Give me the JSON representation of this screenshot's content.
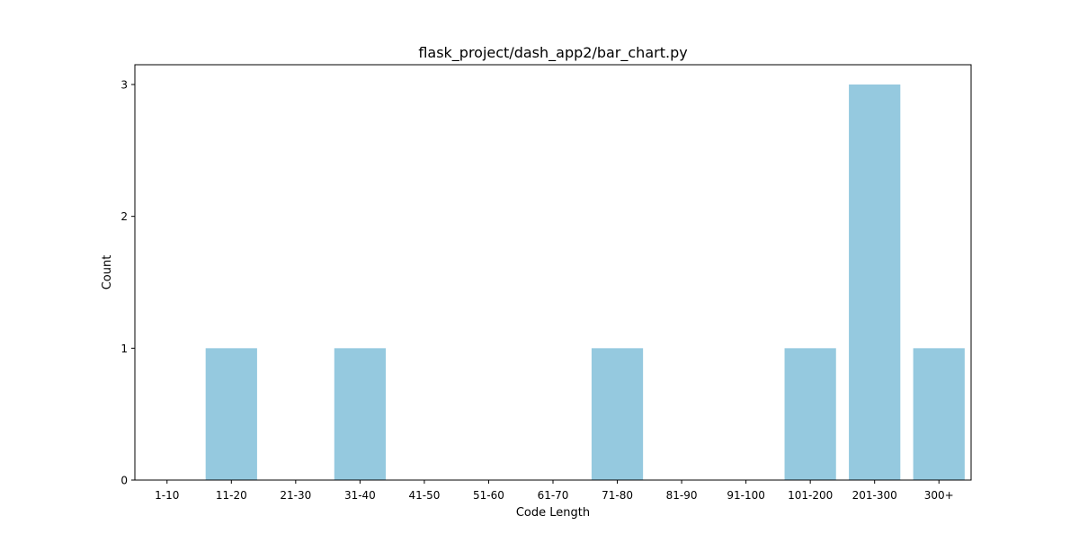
{
  "chart_data": {
    "type": "bar",
    "title": "flask_project/dash_app2/bar_chart.py",
    "xlabel": "Code Length",
    "ylabel": "Count",
    "categories": [
      "1-10",
      "11-20",
      "21-30",
      "31-40",
      "41-50",
      "51-60",
      "61-70",
      "71-80",
      "81-90",
      "91-100",
      "101-200",
      "201-300",
      "300+"
    ],
    "values": [
      0,
      1,
      0,
      1,
      0,
      0,
      0,
      1,
      0,
      0,
      1,
      3,
      1
    ],
    "ylim": [
      0,
      3.15
    ],
    "yticks": [
      0,
      1,
      2,
      3
    ],
    "bar_color": "#95c9df",
    "grid": false
  }
}
